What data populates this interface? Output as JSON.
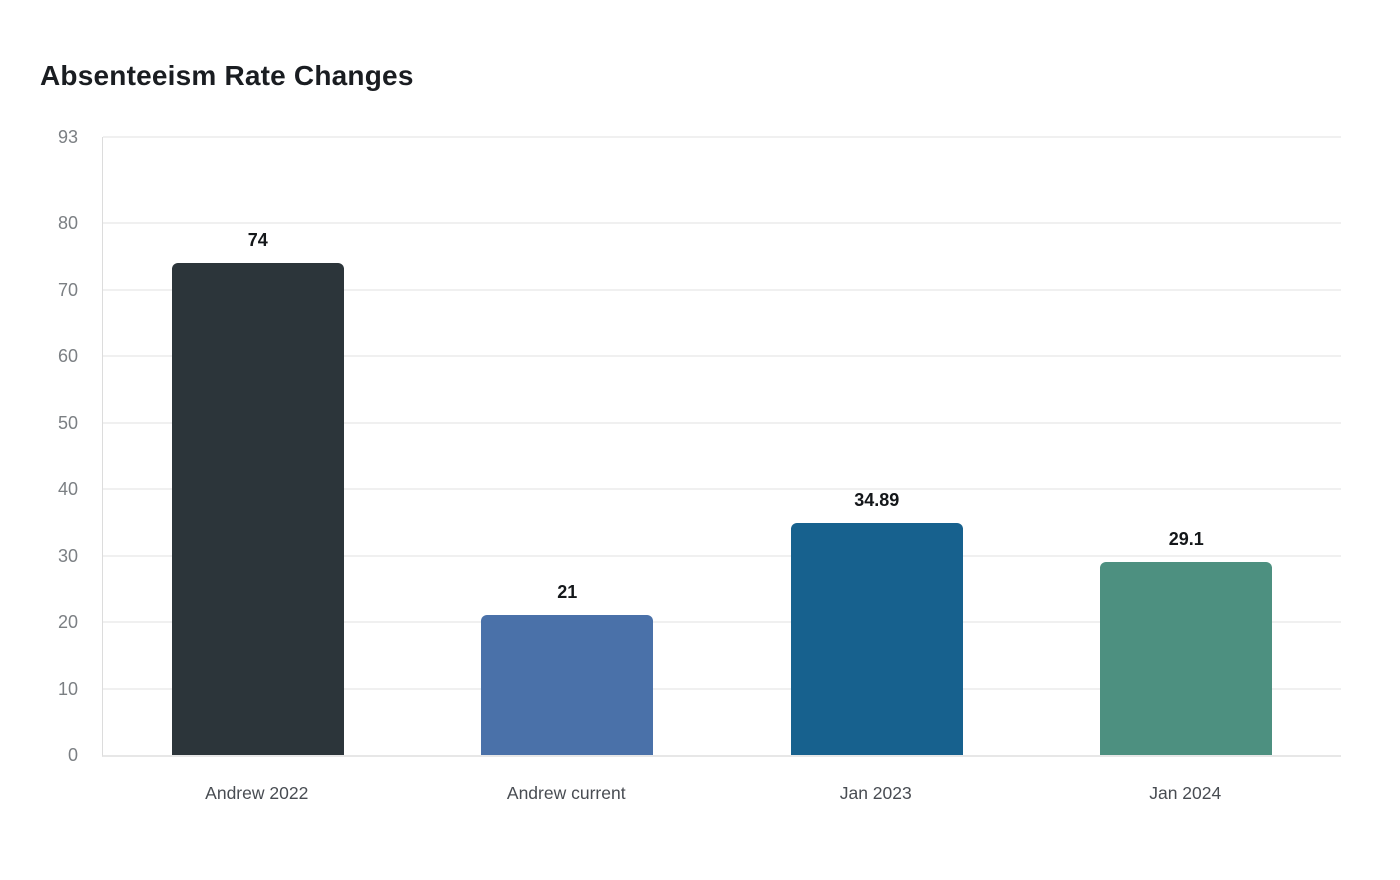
{
  "title": "Absenteeism Rate Changes",
  "chart_data": {
    "type": "bar",
    "title": "Absenteeism Rate Changes",
    "categories": [
      "Andrew 2022",
      "Andrew current",
      "Jan 2023",
      "Jan 2024"
    ],
    "values": [
      74,
      21,
      34.89,
      29.1
    ],
    "value_labels": [
      "74",
      "21",
      "34.89",
      "29.1"
    ],
    "bar_colors": [
      "#2c353a",
      "#4a71a9",
      "#17618e",
      "#4d9080"
    ],
    "xlabel": "",
    "ylabel": "",
    "ylim": [
      0,
      93
    ],
    "yticks": [
      0,
      10,
      20,
      30,
      40,
      50,
      60,
      70,
      80,
      93
    ],
    "grid": true,
    "legend_position": "none",
    "value_labels_shown": true,
    "background_color": "#ffffff",
    "gridline_color": "#f0f0f0",
    "axis_label_color": "#7b7f83",
    "category_label_color": "#484c52"
  }
}
